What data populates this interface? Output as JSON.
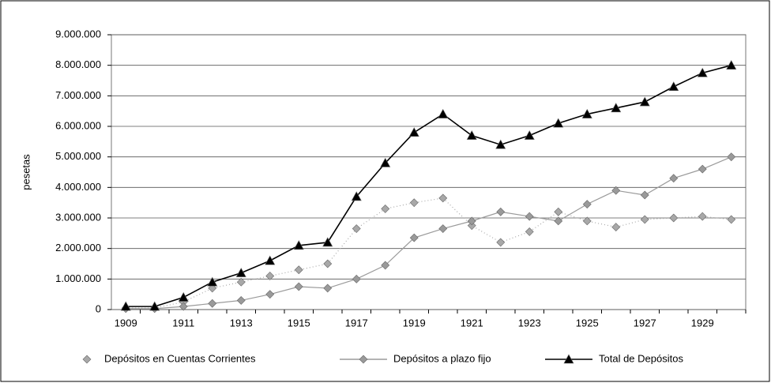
{
  "chart_data": {
    "type": "line",
    "y_label": "pesetas",
    "categories": [
      "1909",
      null,
      "1911",
      null,
      "1913",
      null,
      "1915",
      null,
      "1917",
      null,
      "1919",
      null,
      "1921",
      null,
      "1923",
      null,
      "1925",
      null,
      "1927",
      null,
      "1929",
      null
    ],
    "series": [
      {
        "name": "Depósitos en Cuentas Corrientes",
        "color": "#a8a8a8",
        "line_style": "dotted",
        "marker": "diamond",
        "values": [
          50000,
          50000,
          250000,
          700000,
          900000,
          1100000,
          1300000,
          1500000,
          2650000,
          3300000,
          3500000,
          3650000,
          2750000,
          2200000,
          2550000,
          3200000,
          2900000,
          2700000,
          2950000,
          3000000,
          3050000,
          2950000
        ]
      },
      {
        "name": "Depósitos a plazo fijo",
        "color": "#9a9a9a",
        "line_style": "solid",
        "marker": "diamond",
        "values": [
          30000,
          30000,
          100000,
          200000,
          300000,
          500000,
          750000,
          700000,
          1000000,
          1450000,
          2350000,
          2650000,
          2900000,
          3200000,
          3050000,
          2900000,
          3450000,
          3900000,
          3750000,
          4300000,
          4600000,
          5000000
        ]
      },
      {
        "name": "Total de Depósitos",
        "color": "#000000",
        "line_style": "solid",
        "marker": "triangle",
        "values": [
          100000,
          100000,
          400000,
          900000,
          1200000,
          1600000,
          2100000,
          2200000,
          3700000,
          4800000,
          5800000,
          6400000,
          5700000,
          5400000,
          5700000,
          6100000,
          6400000,
          6600000,
          6800000,
          7300000,
          7750000,
          8000000
        ]
      }
    ],
    "ylim": [
      0,
      9000000
    ],
    "yticks": [
      0,
      {
        "value": 1000000,
        "label": "1.000.000"
      },
      {
        "value": 2000000,
        "label": "2.000.000"
      },
      {
        "value": 3000000,
        "label": "3.000.000"
      },
      {
        "value": 4000000,
        "label": "4.000.000"
      },
      {
        "value": 5000000,
        "label": "5.000.000"
      },
      {
        "value": 6000000,
        "label": "6.000.000"
      },
      {
        "value": 7000000,
        "label": "7.000.000"
      },
      {
        "value": 8000000,
        "label": "8.000.000"
      },
      {
        "value": 9000000,
        "label": "9.000.000"
      }
    ],
    "grid": true,
    "legend": "bottom"
  }
}
